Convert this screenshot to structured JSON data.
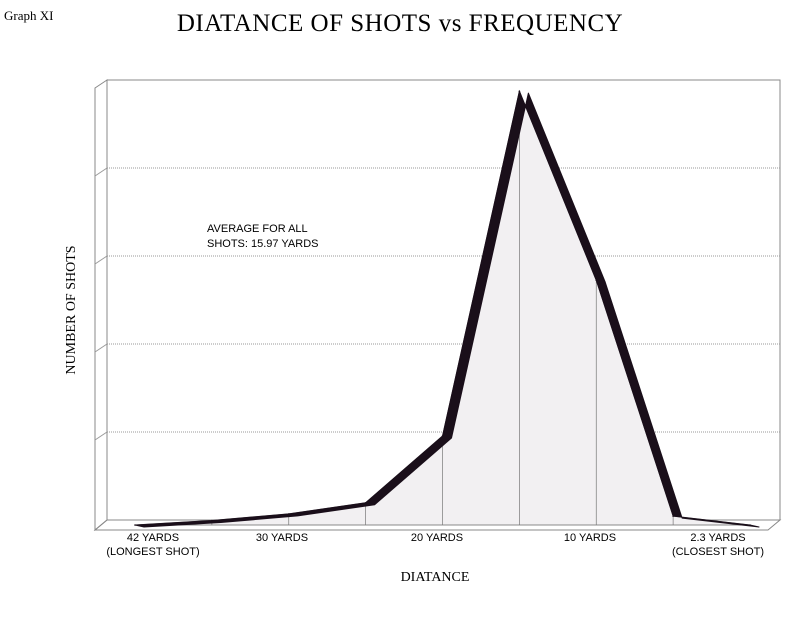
{
  "page_label": "Graph XI",
  "chart_data": {
    "type": "area",
    "title": "DIATANCE OF SHOTS vs FREQUENCY",
    "xlabel": "DIATANCE",
    "ylabel": "NUMBER OF SHOTS",
    "x_tick_labels": [
      {
        "line1": "42 YARDS",
        "line2": "(LONGEST SHOT)"
      },
      {
        "line1": "30 YARDS",
        "line2": ""
      },
      {
        "line1": "20 YARDS",
        "line2": ""
      },
      {
        "line1": "10 YARDS",
        "line2": ""
      },
      {
        "line1": "2.3 YARDS",
        "line2": "(CLOSEST SHOT)"
      }
    ],
    "values": [
      0,
      0.2,
      0.5,
      1.0,
      4.0,
      19.5,
      11.0,
      0.4,
      0
    ],
    "ylim": [
      0,
      20
    ],
    "grid": true,
    "annotation": {
      "line1": "AVERAGE FOR ALL",
      "line2": "SHOTS: 15.97 YARDS"
    },
    "colors": {
      "fill": "#f2f0f2",
      "edge": "#1a0f1a",
      "grid": "#9a9a9a"
    }
  }
}
